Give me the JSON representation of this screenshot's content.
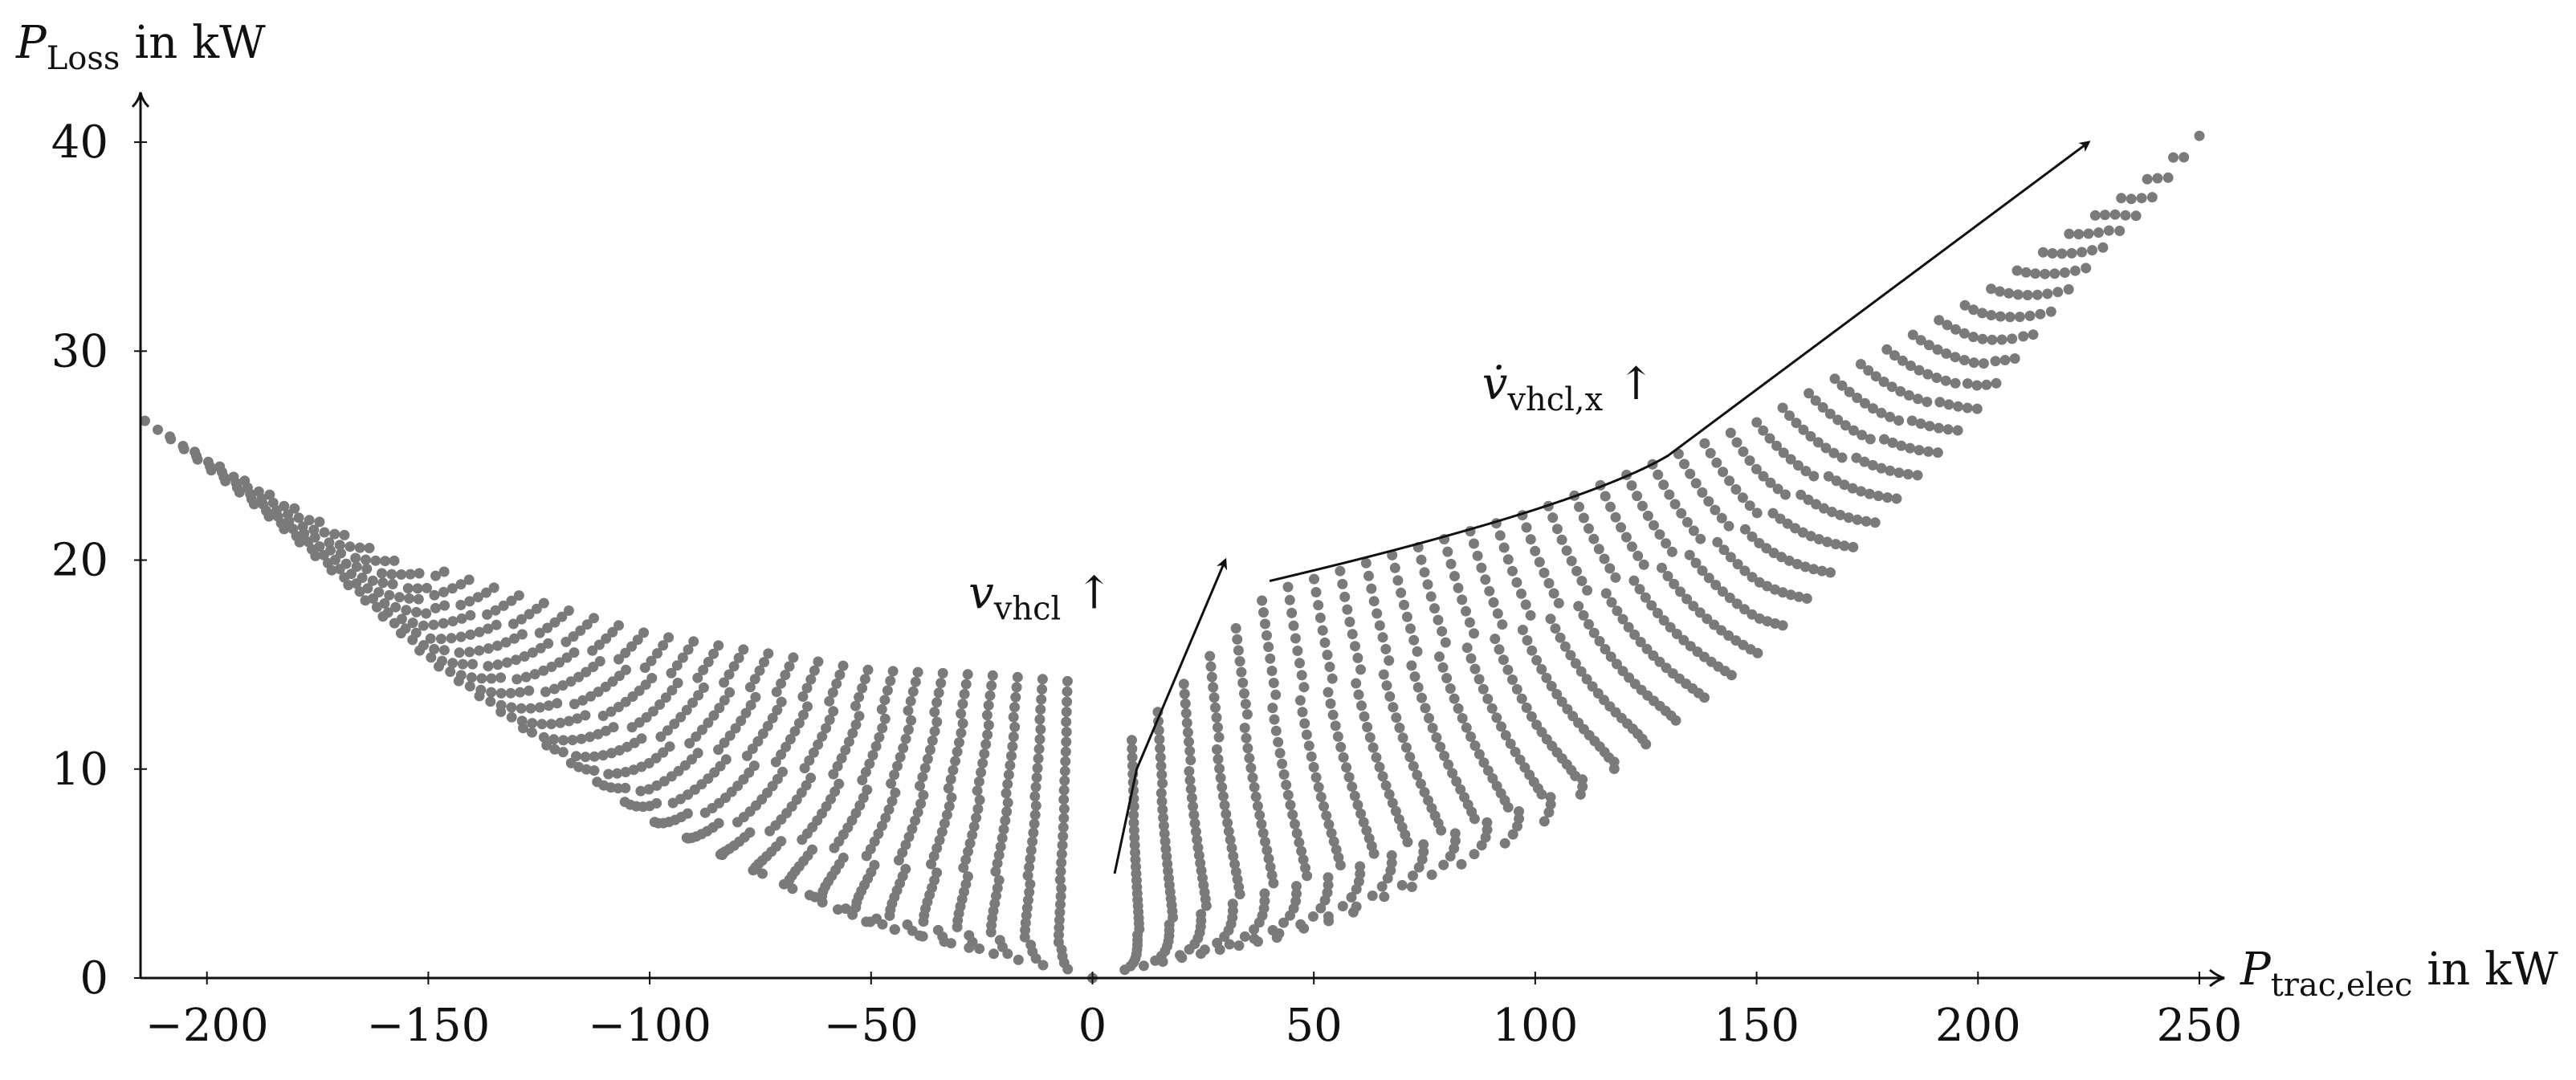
{
  "chart_data": {
    "type": "scatter",
    "title": "",
    "xlabel": {
      "symbol": "P",
      "subscript": "trac,elec",
      "unit": "in kW"
    },
    "ylabel": {
      "symbol": "P",
      "subscript": "Loss",
      "unit": "in kW"
    },
    "xlim": [
      -215,
      252
    ],
    "ylim": [
      0,
      42
    ],
    "x_ticks": [
      -200,
      -150,
      -100,
      -50,
      0,
      50,
      100,
      150,
      200,
      250
    ],
    "y_ticks": [
      0,
      10,
      20,
      30,
      40
    ],
    "x_tick_labels": [
      "−200",
      "−150",
      "−100",
      "−50",
      "0",
      "50",
      "100",
      "150",
      "200",
      "250"
    ],
    "y_tick_labels": [
      "0",
      "10",
      "20",
      "30",
      "40"
    ],
    "grid": false,
    "legend": "none",
    "point_color": "#7a7a7a",
    "series": [
      {
        "values_description_free": true,
        "envelope": {
          "regen_lower_bound": [
            [
              -214,
              26.0
            ],
            [
              -200,
              23.0
            ],
            [
              -150,
              13.6
            ],
            [
              -100,
              6.9
            ],
            [
              -50,
              2.6
            ],
            [
              0,
              0.0
            ]
          ],
          "regen_upper_bound": [
            [
              -214,
              27.2
            ],
            [
              -200,
              26.2
            ],
            [
              -150,
              22.0
            ],
            [
              -100,
              18.2
            ],
            [
              -50,
              15.6
            ],
            [
              -20,
              14.9
            ],
            [
              5,
              14.2
            ]
          ],
          "traction_lower_bound": [
            [
              0,
              0.0
            ],
            [
              50,
              2.2
            ],
            [
              100,
              6.0
            ],
            [
              150,
              12.2
            ],
            [
              200,
              21.5
            ],
            [
              230,
              29.5
            ]
          ],
          "traction_upper_bound": [
            [
              5,
              10.5
            ],
            [
              40,
              18.7
            ],
            [
              100,
              23.0
            ],
            [
              150,
              27.5
            ],
            [
              200,
              33.5
            ],
            [
              235,
              38.5
            ],
            [
              250,
              41.5
            ]
          ]
        }
      }
    ],
    "annotations": [
      {
        "symbol": "v",
        "subscript": "vhcl",
        "suffix": "↑",
        "arrow_from": [
          5,
          5
        ],
        "arrow_to": [
          30,
          20
        ]
      },
      {
        "symbol": "v̇",
        "subscript": "vhcl,x",
        "suffix": "↑",
        "arrow_from": [
          40,
          19
        ],
        "arrow_to": [
          225,
          40
        ]
      }
    ]
  }
}
